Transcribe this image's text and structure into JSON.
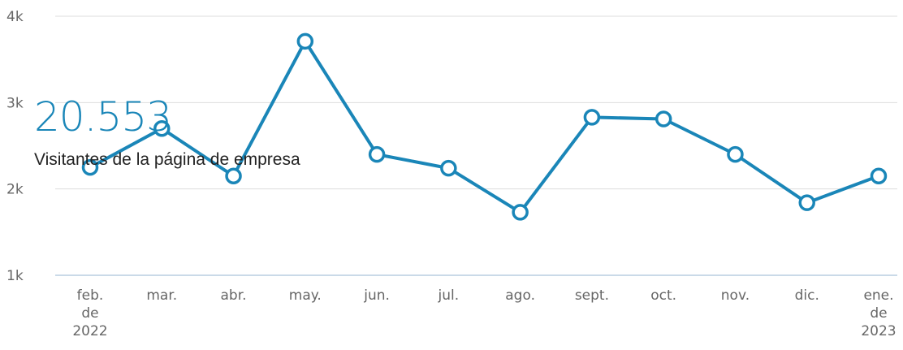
{
  "summary": {
    "value": "20.553",
    "label": "Visitantes de la página de empresa"
  },
  "chart_data": {
    "type": "line",
    "categories": [
      [
        "feb.",
        "de",
        "2022"
      ],
      [
        "mar."
      ],
      [
        "abr."
      ],
      [
        "may."
      ],
      [
        "jun."
      ],
      [
        "jul."
      ],
      [
        "ago."
      ],
      [
        "sept."
      ],
      [
        "oct."
      ],
      [
        "nov."
      ],
      [
        "dic."
      ],
      [
        "ene.",
        "de",
        "2023"
      ]
    ],
    "values": [
      2250,
      2700,
      2150,
      3710,
      2400,
      2240,
      1730,
      2830,
      2810,
      2400,
      1840,
      2150
    ],
    "ylim": [
      1000,
      4000
    ],
    "yticks": [
      1000,
      2000,
      3000,
      4000
    ],
    "ytick_labels": [
      "1k",
      "2k",
      "3k",
      "4k"
    ],
    "grid": true,
    "line_color": "#1a86b8",
    "grid_color": "#dddddd",
    "axis_color": "#b8cde0"
  }
}
